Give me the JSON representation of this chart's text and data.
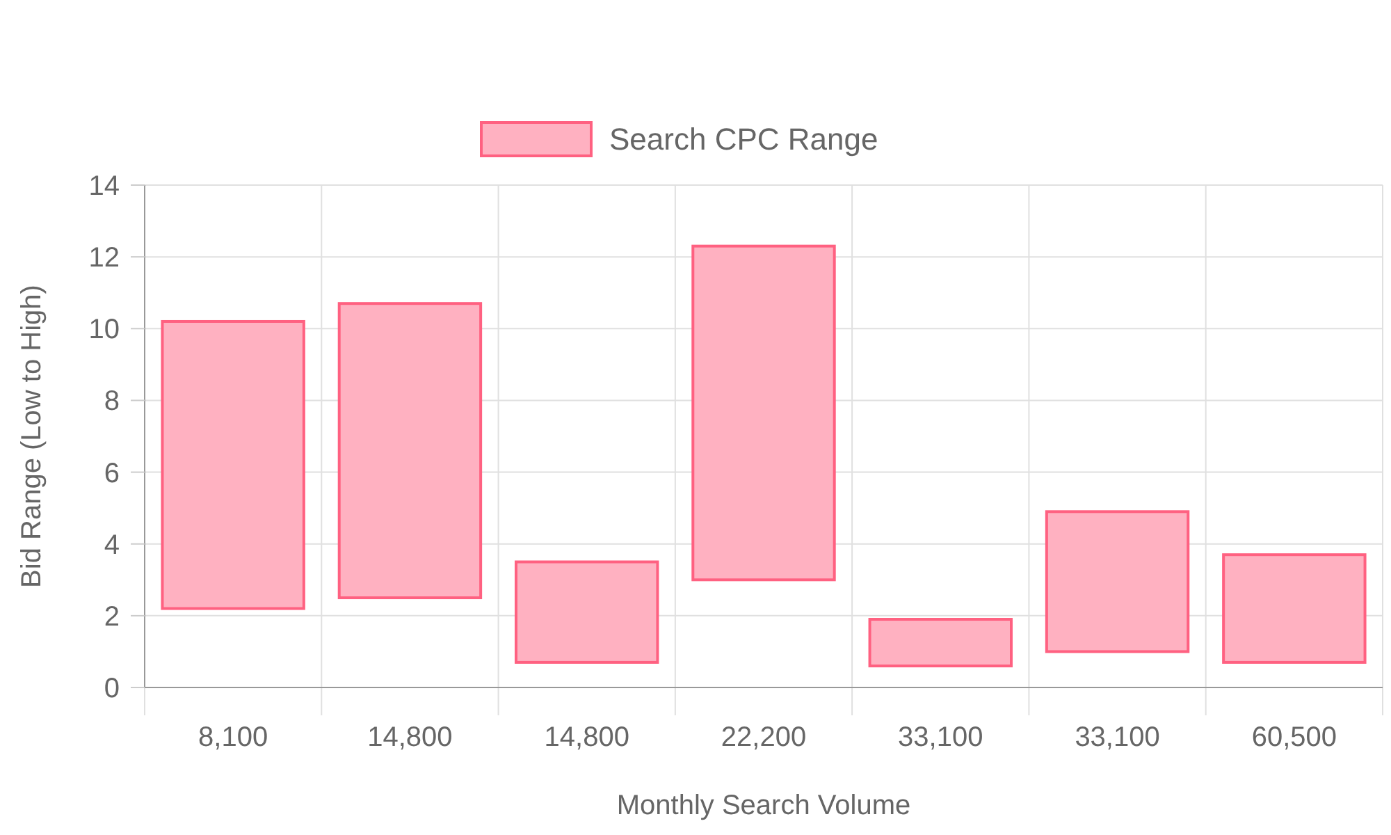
{
  "chart_data": {
    "type": "bar",
    "xlabel": "Monthly Search Volume",
    "ylabel": "Bid Range (Low to High)",
    "categories": [
      "8,100",
      "14,800",
      "14,800",
      "22,200",
      "33,100",
      "33,100",
      "60,500"
    ],
    "series": [
      {
        "name": "Search CPC Range",
        "color": "#ffb1c1",
        "values": [
          8.0,
          8.2,
          2.8,
          9.3,
          1.3,
          3.9,
          3.0
        ],
        "base": [
          2.2,
          2.5,
          0.7,
          3.0,
          0.6,
          1.0,
          0.7
        ]
      }
    ],
    "ylim": [
      0,
      14
    ],
    "yticks": [
      0,
      2,
      4,
      6,
      8,
      10,
      12,
      14
    ],
    "grid": true,
    "legend": "top"
  }
}
